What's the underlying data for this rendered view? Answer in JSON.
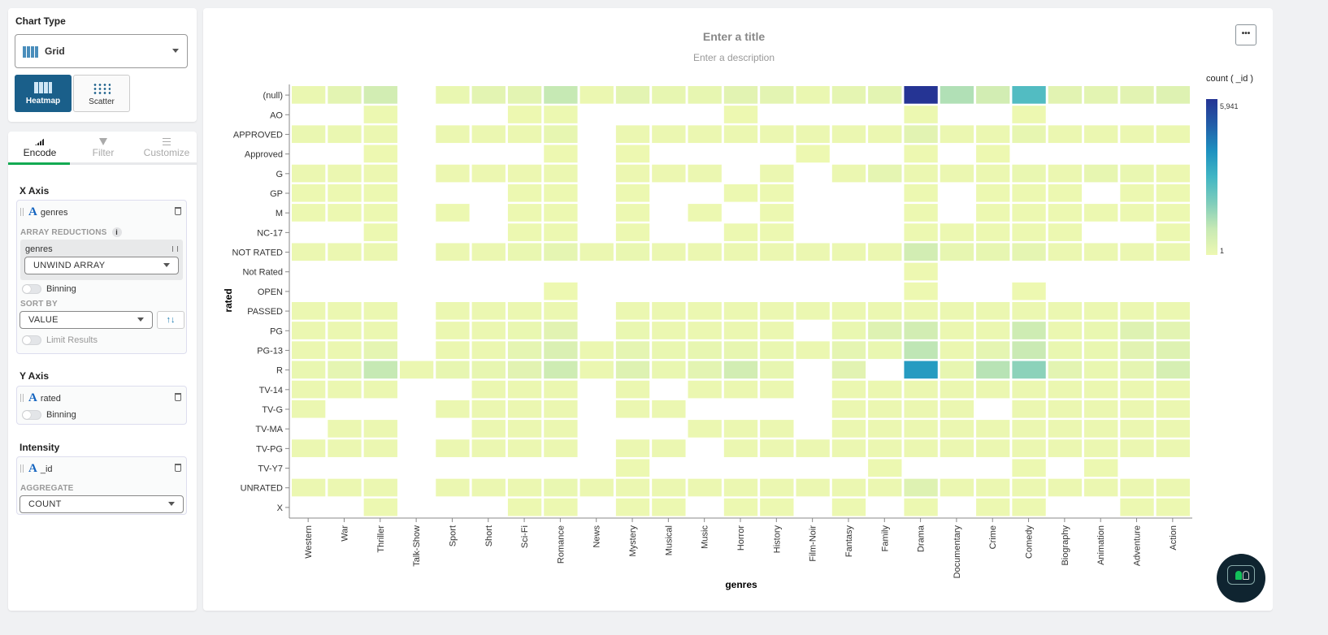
{
  "chart_type": {
    "heading": "Chart Type",
    "selected": "Grid",
    "options": [
      {
        "label": "Heatmap",
        "active": true
      },
      {
        "label": "Scatter",
        "active": false
      }
    ]
  },
  "tabs": [
    {
      "label": "Encode",
      "active": true
    },
    {
      "label": "Filter"
    },
    {
      "label": "Customize"
    }
  ],
  "x_axis": {
    "heading": "X Axis",
    "field": "genres",
    "array_reductions_label": "ARRAY REDUCTIONS",
    "reduction_field": "genres",
    "reduction": "UNWIND ARRAY",
    "binning_label": "Binning",
    "sort_by_label": "SORT BY",
    "sort_by": "VALUE",
    "limit_label": "Limit Results"
  },
  "y_axis": {
    "heading": "Y Axis",
    "field": "rated",
    "binning_label": "Binning"
  },
  "intensity": {
    "heading": "Intensity",
    "field": "_id",
    "aggregate_label": "AGGREGATE",
    "aggregate": "COUNT"
  },
  "header": {
    "title_placeholder": "Enter a title",
    "description_placeholder": "Enter a description",
    "menu_label": "•••"
  },
  "colors": {
    "accent": "#13aa52",
    "heatmap_button": "#1a5f8a",
    "scale": [
      "#edf8b1",
      "#c7e9b4",
      "#7fcdbb",
      "#41b6c4",
      "#1d91c0",
      "#225ea8",
      "#253494"
    ]
  },
  "chart_data": {
    "type": "heatmap",
    "xlabel": "genres",
    "ylabel": "rated",
    "legend_title": "count ( _id )",
    "legend_max": "5,941",
    "legend_min": "1",
    "color_range": [
      1,
      5941
    ],
    "x": [
      "Western",
      "War",
      "Thriller",
      "Talk-Show",
      "Sport",
      "Short",
      "Sci-Fi",
      "Romance",
      "News",
      "Mystery",
      "Musical",
      "Music",
      "Horror",
      "History",
      "Film-Noir",
      "Fantasy",
      "Family",
      "Drama",
      "Documentary",
      "Crime",
      "Comedy",
      "Biography",
      "Animation",
      "Adventure",
      "Action"
    ],
    "y": [
      "(null)",
      "AO",
      "APPROVED",
      "Approved",
      "G",
      "GP",
      "M",
      "NC-17",
      "NOT RATED",
      "Not Rated",
      "OPEN",
      "PASSED",
      "PG",
      "PG-13",
      "R",
      "TV-14",
      "TV-G",
      "TV-MA",
      "TV-PG",
      "TV-Y7",
      "UNRATED",
      "X"
    ],
    "values": [
      [
        80,
        250,
        700,
        null,
        100,
        250,
        250,
        1000,
        60,
        250,
        150,
        150,
        300,
        250,
        80,
        200,
        250,
        5941,
        1300,
        700,
        2700,
        300,
        250,
        300,
        400
      ],
      [
        null,
        null,
        20,
        null,
        null,
        null,
        10,
        20,
        null,
        null,
        null,
        null,
        10,
        null,
        null,
        null,
        null,
        20,
        null,
        null,
        10,
        null,
        null,
        null,
        null
      ],
      [
        80,
        80,
        60,
        null,
        60,
        60,
        60,
        150,
        null,
        60,
        60,
        60,
        60,
        60,
        60,
        60,
        60,
        300,
        60,
        60,
        150,
        60,
        60,
        60,
        60
      ],
      [
        null,
        null,
        5,
        null,
        null,
        null,
        null,
        5,
        null,
        5,
        null,
        null,
        null,
        null,
        5,
        null,
        null,
        5,
        null,
        5,
        null,
        null,
        null,
        null,
        null
      ],
      [
        60,
        60,
        40,
        null,
        40,
        40,
        40,
        60,
        null,
        40,
        40,
        60,
        null,
        60,
        null,
        60,
        200,
        60,
        60,
        60,
        100,
        60,
        150,
        100,
        40
      ],
      [
        30,
        30,
        30,
        null,
        null,
        null,
        30,
        30,
        null,
        30,
        null,
        null,
        30,
        30,
        null,
        null,
        null,
        30,
        null,
        30,
        30,
        30,
        null,
        30,
        30
      ],
      [
        20,
        20,
        20,
        null,
        20,
        null,
        20,
        20,
        null,
        20,
        null,
        20,
        null,
        20,
        null,
        null,
        null,
        20,
        null,
        20,
        20,
        20,
        20,
        20,
        20
      ],
      [
        null,
        null,
        20,
        null,
        null,
        null,
        20,
        20,
        null,
        20,
        null,
        null,
        20,
        20,
        null,
        null,
        null,
        20,
        20,
        20,
        20,
        20,
        null,
        null,
        20
      ],
      [
        60,
        60,
        60,
        null,
        60,
        60,
        100,
        200,
        60,
        100,
        60,
        60,
        60,
        60,
        60,
        60,
        60,
        700,
        150,
        150,
        200,
        60,
        60,
        60,
        60
      ],
      [
        null,
        null,
        null,
        null,
        null,
        null,
        null,
        null,
        null,
        null,
        null,
        null,
        null,
        null,
        null,
        null,
        null,
        5,
        null,
        null,
        null,
        null,
        null,
        null,
        null
      ],
      [
        null,
        null,
        null,
        null,
        null,
        null,
        null,
        2,
        null,
        null,
        null,
        null,
        null,
        null,
        null,
        null,
        null,
        5,
        null,
        null,
        3,
        null,
        null,
        null,
        null
      ],
      [
        60,
        60,
        60,
        null,
        60,
        60,
        60,
        60,
        null,
        60,
        60,
        60,
        60,
        60,
        60,
        60,
        60,
        60,
        60,
        60,
        60,
        60,
        60,
        60,
        60
      ],
      [
        60,
        60,
        60,
        null,
        60,
        60,
        100,
        300,
        null,
        100,
        60,
        60,
        60,
        60,
        null,
        100,
        400,
        700,
        60,
        60,
        800,
        60,
        100,
        400,
        250
      ],
      [
        60,
        60,
        200,
        null,
        60,
        60,
        200,
        500,
        60,
        200,
        100,
        150,
        150,
        100,
        60,
        200,
        100,
        1100,
        60,
        200,
        900,
        100,
        100,
        300,
        400
      ],
      [
        100,
        200,
        1000,
        60,
        150,
        150,
        300,
        800,
        60,
        400,
        100,
        250,
        700,
        150,
        null,
        300,
        null,
        3700,
        150,
        1200,
        1800,
        250,
        100,
        200,
        600
      ],
      [
        60,
        60,
        60,
        null,
        null,
        60,
        60,
        60,
        null,
        60,
        null,
        60,
        60,
        60,
        null,
        60,
        60,
        60,
        60,
        60,
        60,
        60,
        60,
        60,
        60
      ],
      [
        60,
        null,
        null,
        null,
        60,
        60,
        60,
        60,
        null,
        60,
        60,
        null,
        null,
        null,
        null,
        60,
        60,
        60,
        60,
        null,
        60,
        60,
        60,
        60,
        60
      ],
      [
        null,
        60,
        60,
        null,
        null,
        60,
        60,
        60,
        null,
        null,
        null,
        60,
        60,
        60,
        null,
        60,
        60,
        60,
        60,
        60,
        60,
        60,
        60,
        60,
        60
      ],
      [
        60,
        60,
        60,
        null,
        60,
        60,
        60,
        60,
        null,
        60,
        60,
        null,
        60,
        60,
        60,
        60,
        60,
        60,
        60,
        60,
        60,
        60,
        60,
        60,
        60
      ],
      [
        null,
        null,
        null,
        null,
        null,
        null,
        null,
        null,
        null,
        20,
        null,
        null,
        null,
        null,
        null,
        null,
        20,
        null,
        null,
        null,
        20,
        null,
        20,
        null,
        null
      ],
      [
        60,
        60,
        60,
        null,
        60,
        60,
        60,
        100,
        60,
        60,
        60,
        60,
        60,
        60,
        60,
        60,
        60,
        400,
        60,
        60,
        60,
        60,
        60,
        60,
        60
      ],
      [
        null,
        null,
        20,
        null,
        null,
        null,
        20,
        20,
        null,
        20,
        20,
        null,
        20,
        20,
        null,
        20,
        null,
        20,
        null,
        20,
        20,
        null,
        null,
        20,
        20
      ]
    ]
  }
}
